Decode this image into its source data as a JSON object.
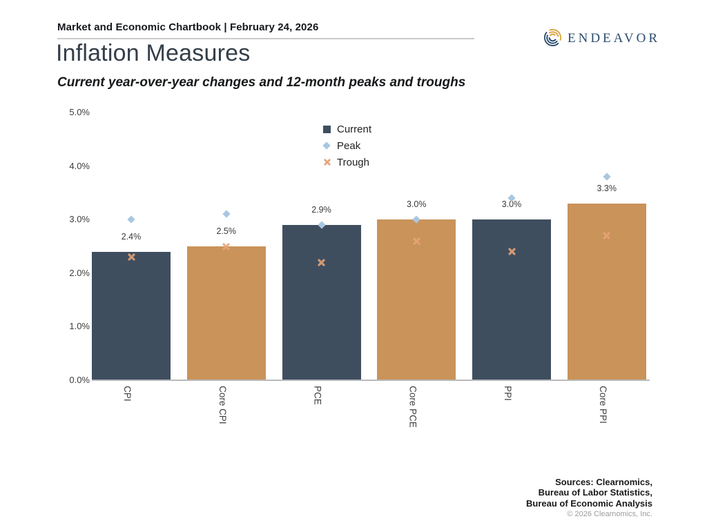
{
  "header": {
    "kicker": "Market and Economic Chartbook | February 24, 2026",
    "logo_text": "ENDEAVOR"
  },
  "title": "Inflation Measures",
  "subtitle": "Current year-over-year changes and 12-month peaks and troughs",
  "legend": [
    {
      "label": "Current",
      "marker": "square",
      "color": "#3f4e5f"
    },
    {
      "label": "Peak",
      "marker": "diamond",
      "color": "#a9c7e0"
    },
    {
      "label": "Trough",
      "marker": "x",
      "color": "#e8a378"
    }
  ],
  "chart_data": {
    "type": "bar",
    "title": "Inflation Measures",
    "subtitle": "Current year-over-year changes and 12-month peaks and troughs",
    "categories": [
      "CPI",
      "Core CPI",
      "PCE",
      "Core PCE",
      "PPI",
      "Core PPI"
    ],
    "series": [
      {
        "name": "Current",
        "type": "bar",
        "values": [
          2.4,
          2.5,
          2.9,
          3.0,
          3.0,
          3.3
        ]
      },
      {
        "name": "Peak",
        "type": "point",
        "marker": "diamond",
        "values": [
          3.0,
          3.1,
          2.9,
          3.0,
          3.4,
          3.8
        ]
      },
      {
        "name": "Trough",
        "type": "point",
        "marker": "x",
        "values": [
          2.3,
          2.5,
          2.2,
          2.6,
          2.4,
          2.7
        ]
      }
    ],
    "bar_labels": [
      "2.4%",
      "2.5%",
      "2.9%",
      "3.0%",
      "3.0%",
      "3.3%"
    ],
    "bar_colors": [
      "#3f4e5f",
      "#c9935a",
      "#3f4e5f",
      "#c9935a",
      "#3f4e5f",
      "#c9935a"
    ],
    "marker_colors": {
      "peak": "#a9c7e0",
      "trough": "#e8a378"
    },
    "y_ticks": [
      "0.0%",
      "1.0%",
      "2.0%",
      "3.0%",
      "4.0%",
      "5.0%"
    ],
    "ylim": [
      0,
      5
    ],
    "ylabel": "",
    "xlabel": "",
    "grid": false,
    "legend_position": "upper center"
  },
  "footer": {
    "sources_lines": [
      "Sources: Clearnomics,",
      "Bureau of Labor Statistics,",
      "Bureau of Economic Analysis"
    ],
    "copyright": "© 2026 Clearnomics, Inc."
  }
}
